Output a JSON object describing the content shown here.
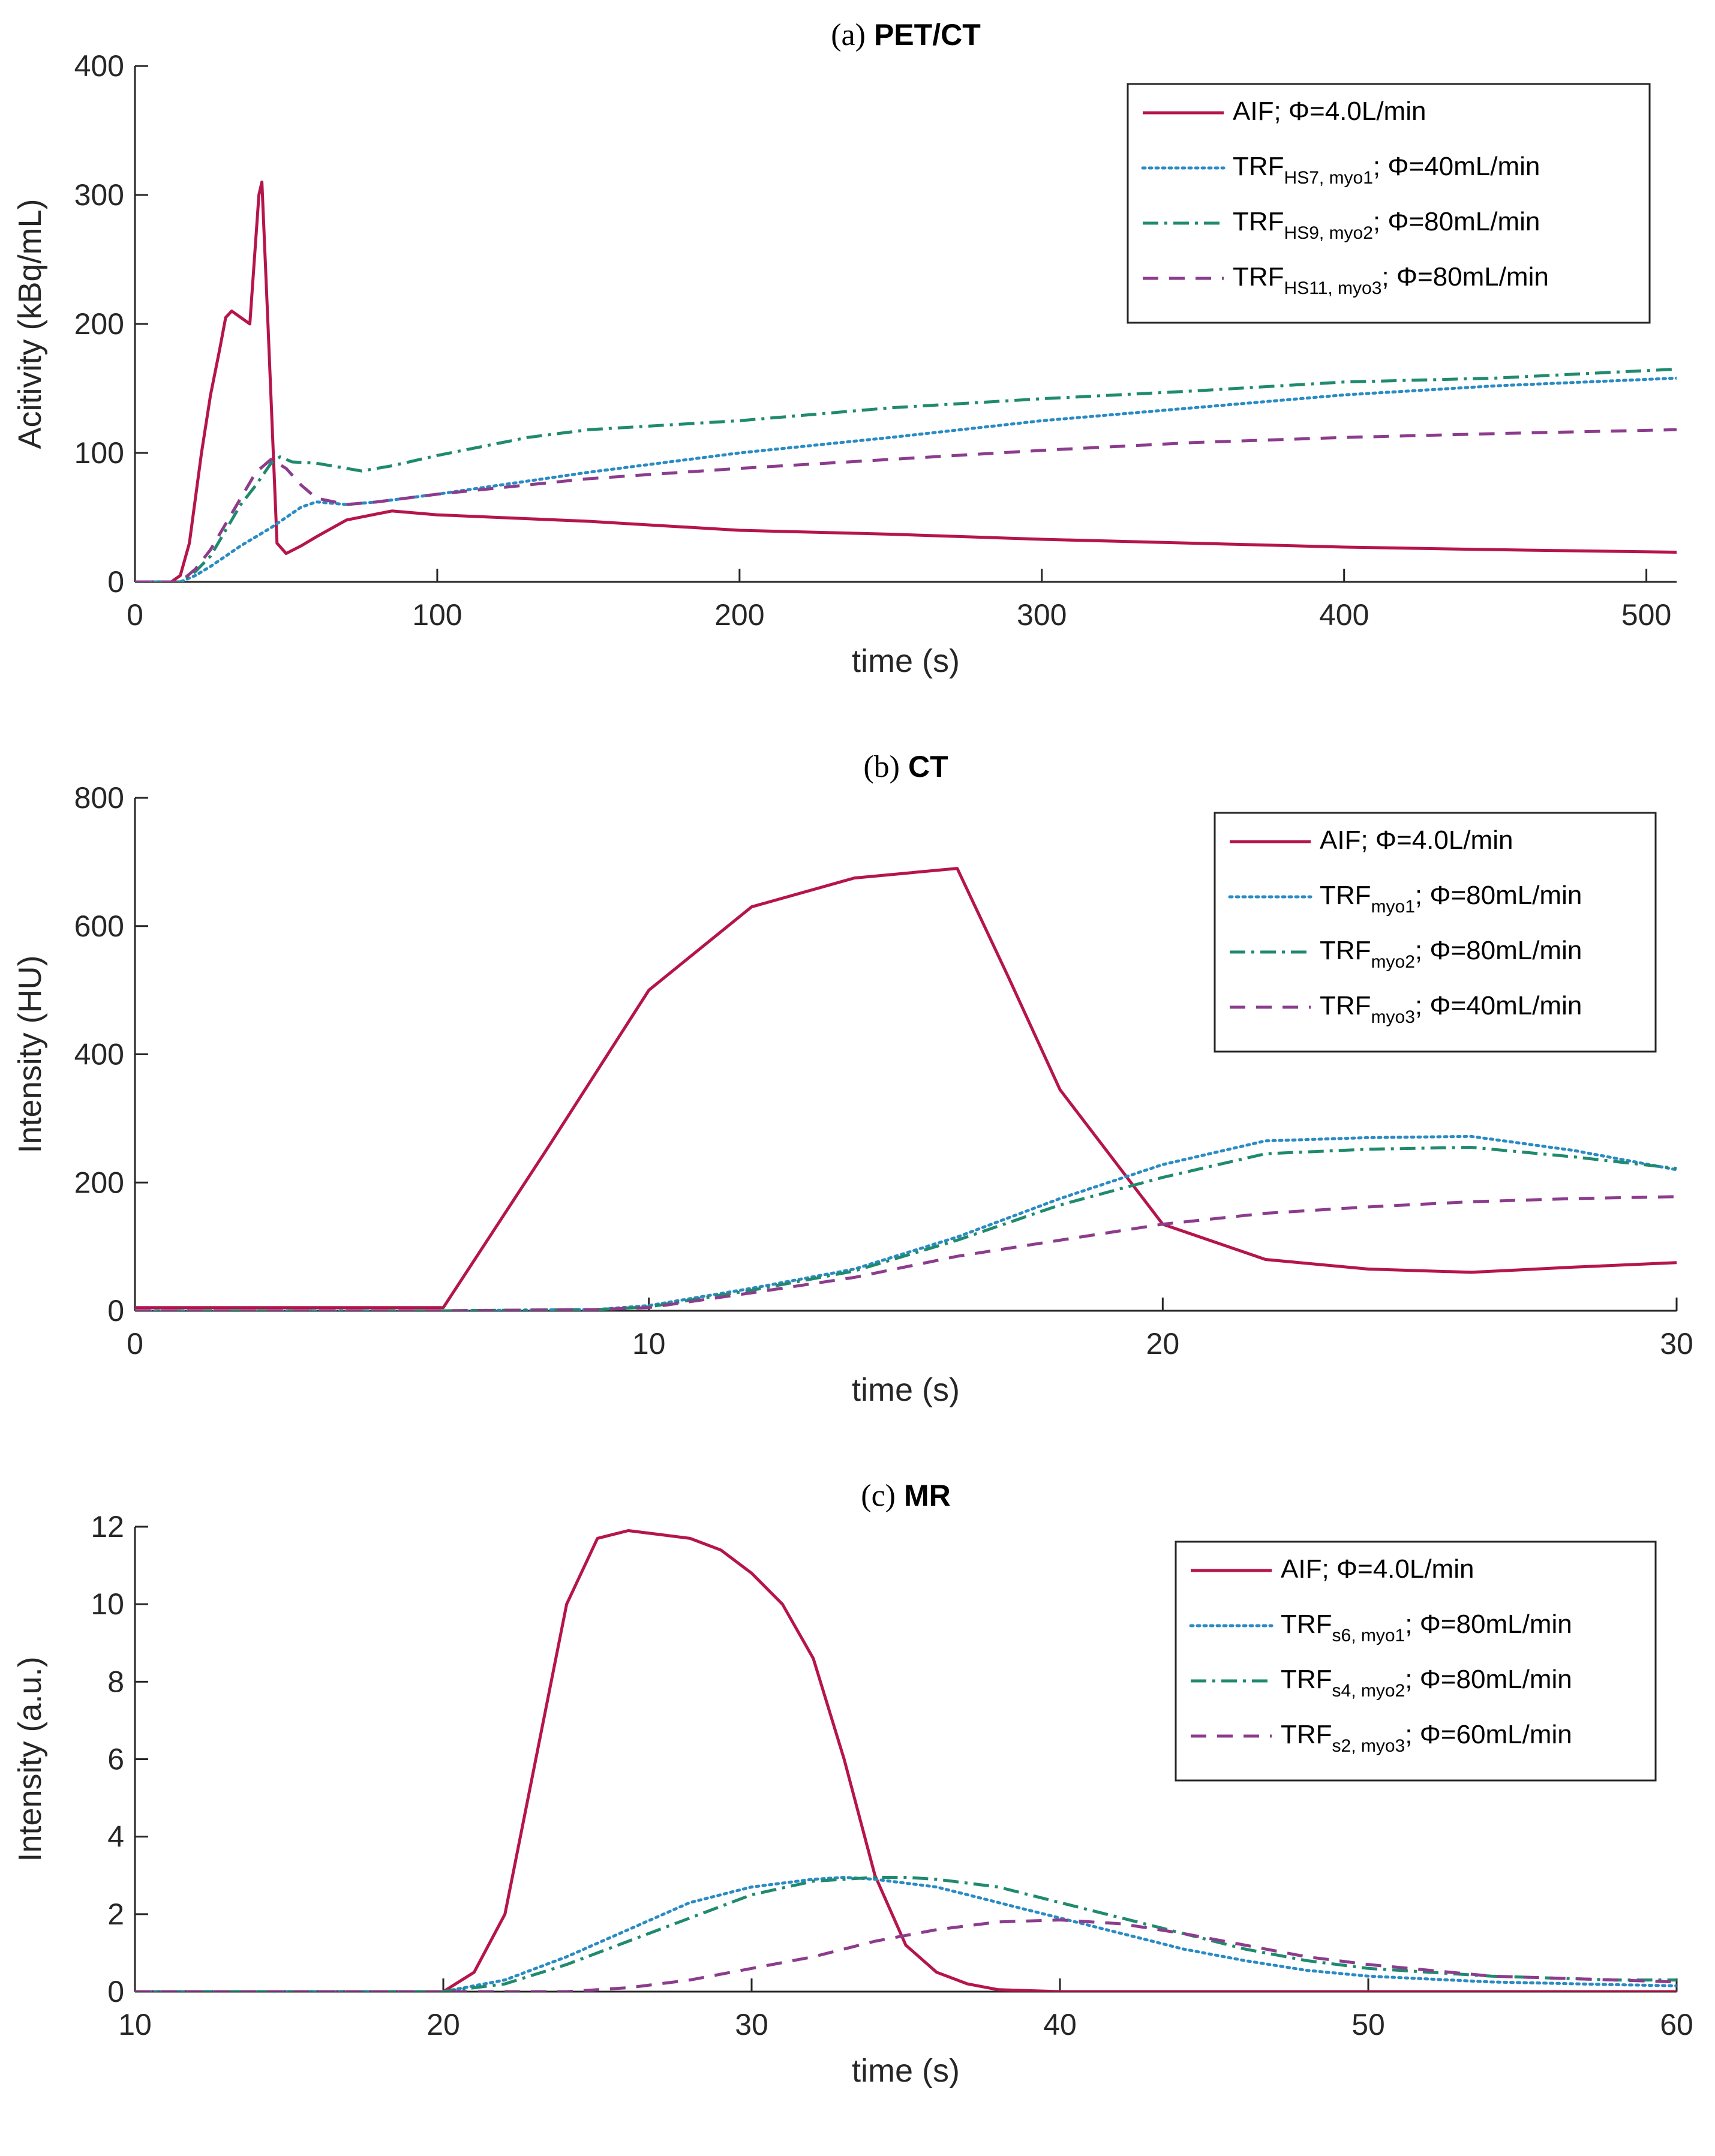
{
  "chart_data": [
    {
      "type": "line",
      "panel_letter": "(a)",
      "title": "PET/CT",
      "xlabel": "time (s)",
      "ylabel": "Acitivity (kBq/mL)",
      "xlim": [
        0,
        510
      ],
      "ylim": [
        0,
        400
      ],
      "xticks": [
        0,
        100,
        200,
        300,
        400,
        500
      ],
      "yticks": [
        0,
        100,
        200,
        300,
        400
      ],
      "legend_position": "top-right",
      "series": [
        {
          "name": "AIF",
          "label_main": "AIF; Φ=4.0L/min",
          "label_sub": "",
          "label_tail": "",
          "color": "#b5154a",
          "style": "solid",
          "x": [
            0,
            12,
            15,
            18,
            22,
            25,
            28,
            30,
            32,
            35,
            38,
            41,
            42,
            44,
            47,
            50,
            55,
            60,
            70,
            85,
            100,
            150,
            200,
            250,
            300,
            350,
            400,
            450,
            510
          ],
          "y": [
            0,
            0,
            5,
            30,
            100,
            145,
            180,
            205,
            210,
            205,
            200,
            300,
            310,
            200,
            30,
            22,
            28,
            35,
            48,
            55,
            52,
            47,
            40,
            37,
            33,
            30,
            27,
            25,
            23
          ]
        },
        {
          "name": "TRF_HS7,myo1",
          "label_main": "TRF",
          "label_sub": "HS7,  myo1",
          "label_tail": "; Φ=40mL/min",
          "color": "#2a8bc4",
          "style": "dotted",
          "x": [
            0,
            15,
            20,
            25,
            30,
            35,
            40,
            45,
            50,
            55,
            60,
            70,
            80,
            100,
            150,
            200,
            250,
            300,
            350,
            400,
            450,
            510
          ],
          "y": [
            0,
            0,
            5,
            12,
            20,
            28,
            35,
            42,
            50,
            58,
            62,
            60,
            62,
            68,
            85,
            100,
            112,
            125,
            135,
            145,
            152,
            158
          ]
        },
        {
          "name": "TRF_HS9,myo2",
          "label_main": "TRF",
          "label_sub": "HS9,  myo2",
          "label_tail": "; Φ=80mL/min",
          "color": "#1f8a6e",
          "style": "dashdot",
          "x": [
            0,
            15,
            20,
            25,
            30,
            35,
            40,
            45,
            48,
            52,
            60,
            70,
            75,
            85,
            100,
            130,
            150,
            200,
            250,
            300,
            350,
            400,
            450,
            510
          ],
          "y": [
            0,
            0,
            8,
            20,
            40,
            60,
            75,
            92,
            97,
            93,
            92,
            88,
            86,
            90,
            98,
            112,
            118,
            125,
            135,
            142,
            148,
            155,
            158,
            165
          ]
        },
        {
          "name": "TRF_HS11,myo3",
          "label_main": "TRF",
          "label_sub": "HS11, myo3",
          "label_tail": "; Φ=80mL/min",
          "color": "#8c3c8c",
          "style": "dashed",
          "x": [
            0,
            15,
            20,
            25,
            30,
            35,
            40,
            45,
            50,
            55,
            60,
            70,
            80,
            100,
            150,
            200,
            250,
            300,
            350,
            400,
            450,
            510
          ],
          "y": [
            0,
            0,
            10,
            25,
            45,
            65,
            85,
            95,
            88,
            75,
            65,
            60,
            62,
            68,
            80,
            88,
            95,
            102,
            108,
            112,
            115,
            118
          ]
        }
      ]
    },
    {
      "type": "line",
      "panel_letter": "(b)",
      "title": "CT",
      "xlabel": "time (s)",
      "ylabel": "Intensity (HU)",
      "xlim": [
        0,
        30
      ],
      "ylim": [
        0,
        800
      ],
      "xticks": [
        0,
        10,
        20,
        30
      ],
      "yticks": [
        0,
        200,
        400,
        600,
        800
      ],
      "legend_position": "top-right",
      "series": [
        {
          "name": "AIF",
          "label_main": "AIF; Φ=4.0L/min",
          "label_sub": "",
          "label_tail": "",
          "color": "#b5154a",
          "style": "solid",
          "x": [
            0,
            6,
            8,
            10,
            12,
            14,
            16,
            17,
            18,
            19,
            20,
            22,
            24,
            26,
            28,
            30
          ],
          "y": [
            5,
            5,
            250,
            500,
            630,
            675,
            690,
            520,
            345,
            240,
            135,
            80,
            65,
            60,
            68,
            75
          ]
        },
        {
          "name": "TRF_myo1",
          "label_main": "TRF",
          "label_sub": "myo1",
          "label_tail": "; Φ=80mL/min",
          "color": "#2a8bc4",
          "style": "dotted",
          "x": [
            0,
            6,
            9,
            10,
            12,
            14,
            16,
            18,
            20,
            22,
            24,
            26,
            28,
            30
          ],
          "y": [
            0,
            0,
            2,
            8,
            35,
            65,
            115,
            175,
            228,
            265,
            270,
            272,
            250,
            220
          ]
        },
        {
          "name": "TRF_myo2",
          "label_main": "TRF",
          "label_sub": "myo2",
          "label_tail": "; Φ=80mL/min",
          "color": "#1f8a6e",
          "style": "dashdot",
          "x": [
            0,
            6,
            9,
            10,
            12,
            14,
            16,
            18,
            20,
            22,
            24,
            26,
            28,
            30
          ],
          "y": [
            0,
            0,
            2,
            6,
            32,
            62,
            110,
            165,
            208,
            245,
            252,
            255,
            240,
            222
          ]
        },
        {
          "name": "TRF_myo3",
          "label_main": "TRF",
          "label_sub": "myo3",
          "label_tail": "; Φ=40mL/min",
          "color": "#8c3c8c",
          "style": "dashed",
          "x": [
            0,
            6,
            9,
            10,
            12,
            14,
            16,
            18,
            20,
            22,
            24,
            26,
            28,
            30
          ],
          "y": [
            0,
            0,
            2,
            5,
            28,
            52,
            85,
            110,
            135,
            152,
            162,
            170,
            175,
            178
          ]
        }
      ]
    },
    {
      "type": "line",
      "panel_letter": "(c)",
      "title": "MR",
      "xlabel": "time (s)",
      "ylabel": "Intensity (a.u.)",
      "xlim": [
        10,
        60
      ],
      "ylim": [
        0,
        12
      ],
      "xticks": [
        10,
        20,
        30,
        40,
        50,
        60
      ],
      "yticks": [
        0,
        2,
        4,
        6,
        8,
        10,
        12
      ],
      "legend_position": "top-right",
      "series": [
        {
          "name": "AIF",
          "label_main": "AIF; Φ=4.0L/min",
          "label_sub": "",
          "label_tail": "",
          "color": "#b5154a",
          "style": "solid",
          "x": [
            10,
            20,
            21,
            22,
            23,
            24,
            25,
            26,
            27,
            28,
            29,
            30,
            31,
            32,
            33,
            34,
            35,
            36,
            37,
            38,
            40,
            45,
            50,
            60
          ],
          "y": [
            0,
            0,
            0.5,
            2,
            6,
            10,
            11.7,
            11.9,
            11.8,
            11.7,
            11.4,
            10.8,
            10.0,
            8.6,
            6.0,
            3.0,
            1.2,
            0.5,
            0.2,
            0.05,
            0,
            0,
            0,
            0
          ]
        },
        {
          "name": "TRF_s6,myo1",
          "label_main": "TRF",
          "label_sub": "s6, myo1",
          "label_tail": "; Φ=80mL/min",
          "color": "#2a8bc4",
          "style": "dotted",
          "x": [
            10,
            20,
            22,
            24,
            26,
            28,
            30,
            32,
            33,
            34,
            36,
            38,
            40,
            42,
            44,
            46,
            48,
            50,
            54,
            58,
            60
          ],
          "y": [
            0,
            0,
            0.3,
            0.9,
            1.6,
            2.3,
            2.7,
            2.9,
            2.95,
            2.9,
            2.7,
            2.3,
            1.9,
            1.5,
            1.1,
            0.8,
            0.55,
            0.4,
            0.25,
            0.18,
            0.15
          ]
        },
        {
          "name": "TRF_s4,myo2",
          "label_main": "TRF",
          "label_sub": "s4, myo2",
          "label_tail": "; Φ=80mL/min",
          "color": "#1f8a6e",
          "style": "dashdot",
          "x": [
            10,
            20,
            22,
            24,
            26,
            28,
            30,
            32,
            34,
            35,
            36,
            38,
            40,
            42,
            44,
            46,
            48,
            50,
            54,
            58,
            60
          ],
          "y": [
            0,
            0,
            0.2,
            0.7,
            1.3,
            1.9,
            2.5,
            2.85,
            2.95,
            2.95,
            2.9,
            2.7,
            2.3,
            1.9,
            1.5,
            1.1,
            0.8,
            0.6,
            0.4,
            0.3,
            0.3
          ]
        },
        {
          "name": "TRF_s2,myo3",
          "label_main": "TRF",
          "label_sub": "s2, myo3",
          "label_tail": "; Φ=60mL/min",
          "color": "#8c3c8c",
          "style": "dashed",
          "x": [
            10,
            24,
            26,
            28,
            30,
            32,
            34,
            36,
            38,
            40,
            42,
            44,
            46,
            48,
            50,
            54,
            58,
            60
          ],
          "y": [
            0,
            0,
            0.1,
            0.3,
            0.6,
            0.9,
            1.3,
            1.6,
            1.8,
            1.85,
            1.75,
            1.5,
            1.2,
            0.9,
            0.7,
            0.4,
            0.3,
            0.25
          ]
        }
      ]
    }
  ]
}
